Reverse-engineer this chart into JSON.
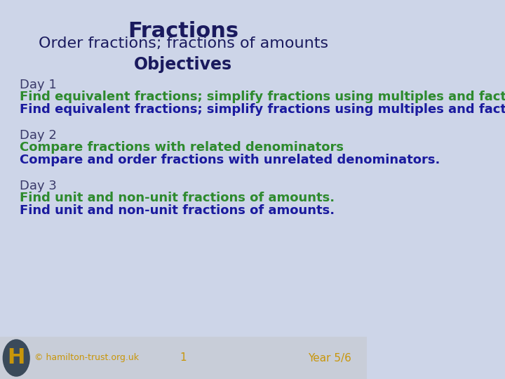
{
  "title": "Fractions",
  "subtitle": "Order fractions; fractions of amounts",
  "objectives_header": "Objectives",
  "bg_color_top": "#cdd5e8",
  "footer_bg": "#c8cdd8",
  "title_color": "#1a1a5e",
  "subtitle_color": "#1a1a5e",
  "objectives_color": "#1a1a5e",
  "day_label_color": "#3a3a6a",
  "green_color": "#2d8a2d",
  "blue_color": "#1a1a9e",
  "footer_text_color": "#c8960a",
  "h_circle_bg": "#3a4a5a",
  "h_letter_color": "#c8960a",
  "day1_label": "Day 1",
  "day1_line1_green": "Find equivalent fractions; simplify fractions using multiples and factors",
  "day1_line2_blue": "Find equivalent fractions; simplify fractions using multiples and factors",
  "day2_label": "Day 2",
  "day2_line1_green": "Compare fractions with related denominators",
  "day2_line2_blue": "Compare and order fractions with unrelated denominators.",
  "day3_label": "Day 3",
  "day3_line1_green": "Find unit and non-unit fractions of amounts.",
  "day3_line2_blue": "Find unit and non-unit fractions of amounts.",
  "footer_copyright": "© hamilton-trust.org.uk",
  "footer_page": "1",
  "footer_year": "Year 5/6"
}
